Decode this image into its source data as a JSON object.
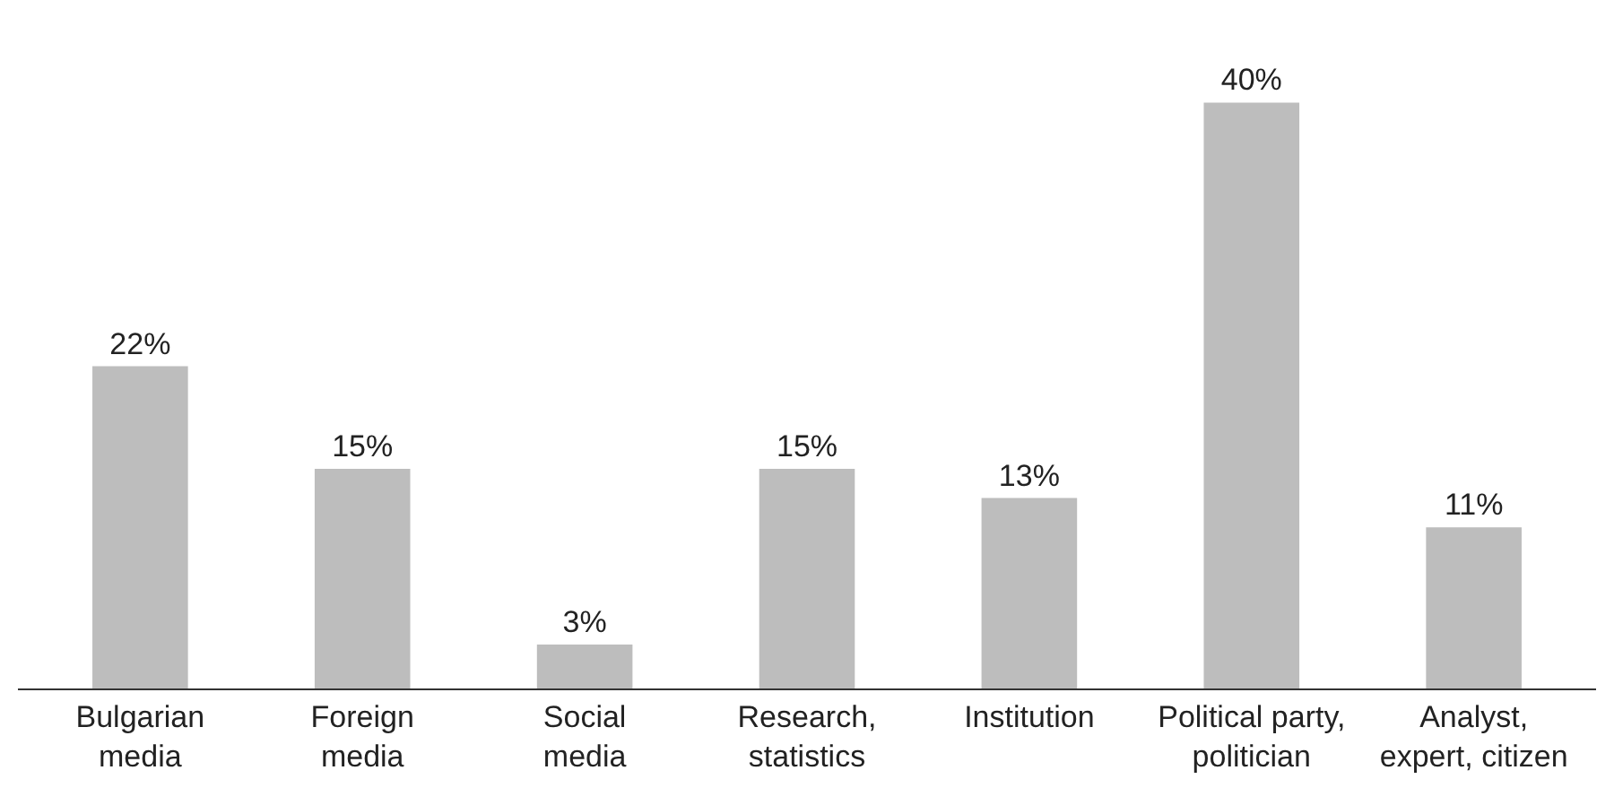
{
  "chart_data": {
    "type": "bar",
    "categories": [
      "Bulgarian\nmedia",
      "Foreign\nmedia",
      "Social\nmedia",
      "Research,\nstatistics",
      "Institution",
      "Political party,\npolitician",
      "Analyst,\nexpert, citizen"
    ],
    "values": [
      22,
      15,
      3,
      15,
      13,
      40,
      11
    ],
    "value_labels": [
      "22%",
      "15%",
      "3%",
      "15%",
      "13%",
      "40%",
      "11%"
    ],
    "color": "#bdbdbd"
  }
}
